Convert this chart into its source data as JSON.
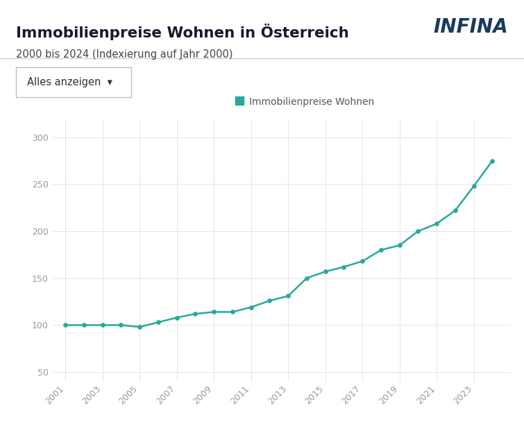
{
  "title": "Immobilienpreise Wohnen in Österreich",
  "subtitle": "2000 bis 2024 (Indexierung auf Jahr 2000)",
  "dropdown_label": "Alles anzeigen  ▾",
  "legend_label": "Immobilienpreise Wohnen",
  "logo_text": "INFINA",
  "years": [
    2001,
    2002,
    2003,
    2004,
    2005,
    2006,
    2007,
    2008,
    2009,
    2010,
    2011,
    2012,
    2013,
    2014,
    2015,
    2016,
    2017,
    2018,
    2019,
    2020,
    2021,
    2022,
    2023,
    2024
  ],
  "values": [
    100,
    100,
    100,
    100,
    98,
    103,
    108,
    112,
    114,
    114,
    119,
    126,
    131,
    150,
    157,
    162,
    168,
    180,
    185,
    200,
    208,
    222,
    248,
    275
  ],
  "line_color": "#29a89e",
  "marker_color": "#29a89e",
  "background_color": "#ffffff",
  "grid_color": "#e0e0e0",
  "title_color": "#1a1a2e",
  "subtitle_color": "#444444",
  "tick_color": "#999999",
  "ylim": [
    40,
    320
  ],
  "yticks": [
    50,
    100,
    150,
    200,
    250,
    300
  ],
  "xtick_labels": [
    "2001",
    "2003",
    "2005",
    "2007",
    "2009",
    "2011",
    "2013",
    "2015",
    "2017",
    "2019",
    "2021",
    "2023"
  ],
  "xtick_positions": [
    2001,
    2003,
    2005,
    2007,
    2009,
    2011,
    2013,
    2015,
    2017,
    2019,
    2021,
    2023
  ],
  "infina_color": "#1b3a5c",
  "infina_x_color": "#29a89e"
}
